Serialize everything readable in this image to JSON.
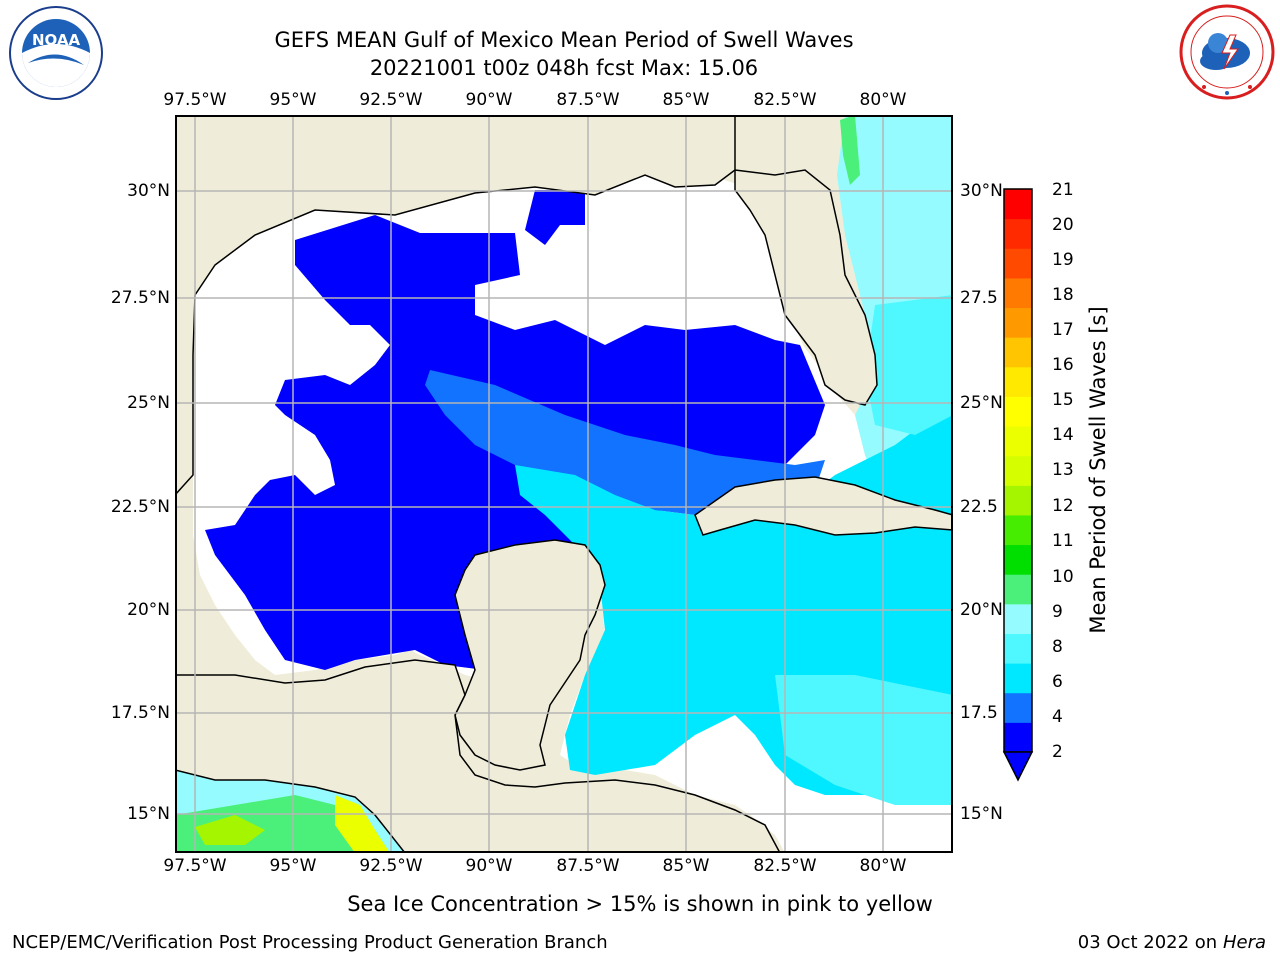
{
  "header": {
    "title_line1": "GEFS MEAN Gulf of Mexico Mean Period of Swell Waves",
    "title_line2": "20221001 t00z 048h fcst   Max: 15.06"
  },
  "logos": {
    "left": {
      "icon": "noaa-logo-icon",
      "text": "NOAA"
    },
    "right": {
      "icon": "nws-logo-icon"
    }
  },
  "map": {
    "lon_ticks_top": [
      "97.5°W",
      "95°W",
      "92.5°W",
      "90°W",
      "87.5°W",
      "85°W",
      "82.5°W",
      "80°W"
    ],
    "lon_ticks_bottom": [
      "97.5°W",
      "95°W",
      "92.5°W",
      "90°W",
      "87.5°W",
      "85°W",
      "82.5°W",
      "80°W"
    ],
    "lat_ticks_left": [
      "30°N",
      "27.5°N",
      "25°N",
      "22.5°N",
      "20°N",
      "17.5°N",
      "15°N"
    ],
    "lat_ticks_right": [
      "30°N",
      "27.5",
      "25°N",
      "22.5",
      "20°N",
      "17.5",
      "15°N"
    ],
    "colors": {
      "land": "#efedd9",
      "coast": "#000000",
      "grid": "#b5b5b5",
      "no_swell": "#ffffff"
    }
  },
  "colorbar": {
    "label": "Mean Period of Swell Waves [s]",
    "ticks": [
      "21",
      "20",
      "19",
      "18",
      "17",
      "16",
      "15",
      "14",
      "13",
      "12",
      "11",
      "10",
      "9",
      "8",
      "6",
      "4",
      "2"
    ],
    "colors": [
      "#0000ff",
      "#1173ff",
      "#00e8ff",
      "#4ff7ff",
      "#96fbff",
      "#4af07a",
      "#00df00",
      "#47ed00",
      "#a5f500",
      "#d5ff00",
      "#ecff00",
      "#ffff00",
      "#ffe900",
      "#ffc500",
      "#ff9900",
      "#ff7a00",
      "#ff4a00",
      "#ff2a00",
      "#ff0000"
    ]
  },
  "footer": {
    "note": "Sea Ice Concentration > 15% is shown in pink to yellow",
    "left": "NCEP/EMC/Verification Post Processing Product Generation Branch",
    "date": "03 Oct 2022 on",
    "machine": "Hera"
  }
}
